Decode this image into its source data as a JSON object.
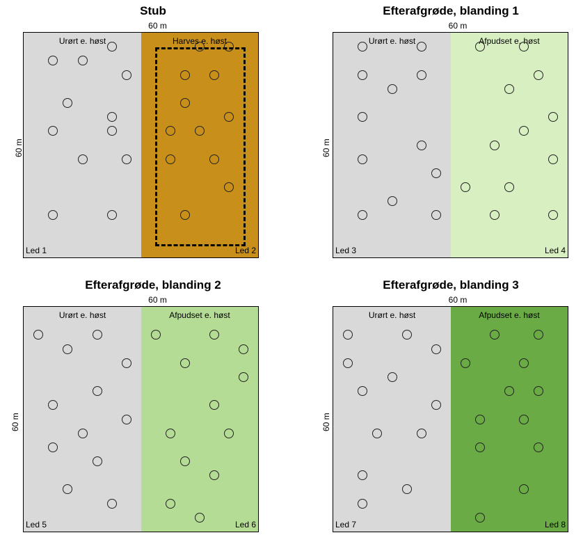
{
  "panels": [
    {
      "title": "Stub",
      "width_label": "60 m",
      "height_label": "60 m",
      "left": {
        "label": "Urørt e. høst",
        "led": "Led 1",
        "color": "#d9d9d9",
        "points": [
          [
            0.25,
            0.125
          ],
          [
            0.5,
            0.125
          ],
          [
            0.75,
            0.0625
          ],
          [
            0.875,
            0.1875
          ],
          [
            0.375,
            0.3125
          ],
          [
            0.75,
            0.375
          ],
          [
            0.25,
            0.4375
          ],
          [
            0.75,
            0.4375
          ],
          [
            0.5,
            0.5625
          ],
          [
            0.875,
            0.5625
          ],
          [
            0.25,
            0.8125
          ],
          [
            0.75,
            0.8125
          ]
        ]
      },
      "right": {
        "label": "Harves e. høst",
        "led": "Led 2",
        "color": "#c8901a",
        "dashed": true,
        "points": [
          [
            0.5,
            0.0625
          ],
          [
            0.75,
            0.0625
          ],
          [
            0.375,
            0.1875
          ],
          [
            0.625,
            0.1875
          ],
          [
            0.375,
            0.3125
          ],
          [
            0.75,
            0.375
          ],
          [
            0.25,
            0.4375
          ],
          [
            0.5,
            0.4375
          ],
          [
            0.25,
            0.5625
          ],
          [
            0.625,
            0.5625
          ],
          [
            0.75,
            0.6875
          ],
          [
            0.375,
            0.8125
          ]
        ]
      }
    },
    {
      "title": "Efterafgrøde, blanding 1",
      "width_label": "60 m",
      "height_label": "60 m",
      "left": {
        "label": "Urørt e. høst",
        "led": "Led 3",
        "color": "#d9d9d9",
        "points": [
          [
            0.25,
            0.0625
          ],
          [
            0.75,
            0.0625
          ],
          [
            0.25,
            0.1875
          ],
          [
            0.75,
            0.1875
          ],
          [
            0.5,
            0.25
          ],
          [
            0.25,
            0.375
          ],
          [
            0.75,
            0.5
          ],
          [
            0.25,
            0.5625
          ],
          [
            0.875,
            0.625
          ],
          [
            0.5,
            0.75
          ],
          [
            0.25,
            0.8125
          ],
          [
            0.875,
            0.8125
          ]
        ]
      },
      "right": {
        "label": "Afpudset e. høst",
        "led": "Led 4",
        "color": "#d8efc2",
        "points": [
          [
            0.25,
            0.0625
          ],
          [
            0.625,
            0.0625
          ],
          [
            0.75,
            0.1875
          ],
          [
            0.5,
            0.25
          ],
          [
            0.875,
            0.375
          ],
          [
            0.625,
            0.4375
          ],
          [
            0.375,
            0.5
          ],
          [
            0.875,
            0.5625
          ],
          [
            0.125,
            0.6875
          ],
          [
            0.5,
            0.6875
          ],
          [
            0.375,
            0.8125
          ],
          [
            0.875,
            0.8125
          ]
        ]
      }
    },
    {
      "title": "Efterafgrøde, blanding 2",
      "width_label": "60 m",
      "height_label": "60 m",
      "left": {
        "label": "Urørt e. høst",
        "led": "Led 5",
        "color": "#d9d9d9",
        "points": [
          [
            0.125,
            0.125
          ],
          [
            0.625,
            0.125
          ],
          [
            0.375,
            0.1875
          ],
          [
            0.875,
            0.25
          ],
          [
            0.625,
            0.375
          ],
          [
            0.25,
            0.4375
          ],
          [
            0.875,
            0.5
          ],
          [
            0.5,
            0.5625
          ],
          [
            0.25,
            0.625
          ],
          [
            0.625,
            0.6875
          ],
          [
            0.375,
            0.8125
          ],
          [
            0.75,
            0.875
          ]
        ]
      },
      "right": {
        "label": "Afpudset e. høst",
        "led": "Led 6",
        "color": "#b5dc95",
        "points": [
          [
            0.125,
            0.125
          ],
          [
            0.625,
            0.125
          ],
          [
            0.875,
            0.1875
          ],
          [
            0.375,
            0.25
          ],
          [
            0.875,
            0.3125
          ],
          [
            0.625,
            0.4375
          ],
          [
            0.25,
            0.5625
          ],
          [
            0.75,
            0.5625
          ],
          [
            0.375,
            0.6875
          ],
          [
            0.625,
            0.75
          ],
          [
            0.25,
            0.875
          ],
          [
            0.5,
            0.9375
          ]
        ]
      }
    },
    {
      "title": "Efterafgrøde, blanding 3",
      "width_label": "60 m",
      "height_label": "60 m",
      "left": {
        "label": "Urørt e. høst",
        "led": "Led 7",
        "color": "#d9d9d9",
        "points": [
          [
            0.125,
            0.125
          ],
          [
            0.625,
            0.125
          ],
          [
            0.875,
            0.1875
          ],
          [
            0.125,
            0.25
          ],
          [
            0.5,
            0.3125
          ],
          [
            0.25,
            0.375
          ],
          [
            0.875,
            0.4375
          ],
          [
            0.375,
            0.5625
          ],
          [
            0.75,
            0.5625
          ],
          [
            0.25,
            0.75
          ],
          [
            0.625,
            0.8125
          ],
          [
            0.25,
            0.875
          ]
        ]
      },
      "right": {
        "label": "Afpudset e. høst",
        "led": "Led 8",
        "color": "#6aab45",
        "points": [
          [
            0.375,
            0.125
          ],
          [
            0.75,
            0.125
          ],
          [
            0.125,
            0.25
          ],
          [
            0.625,
            0.25
          ],
          [
            0.5,
            0.375
          ],
          [
            0.75,
            0.375
          ],
          [
            0.25,
            0.5
          ],
          [
            0.625,
            0.5
          ],
          [
            0.25,
            0.625
          ],
          [
            0.75,
            0.625
          ],
          [
            0.625,
            0.8125
          ],
          [
            0.25,
            0.9375
          ]
        ]
      }
    }
  ]
}
